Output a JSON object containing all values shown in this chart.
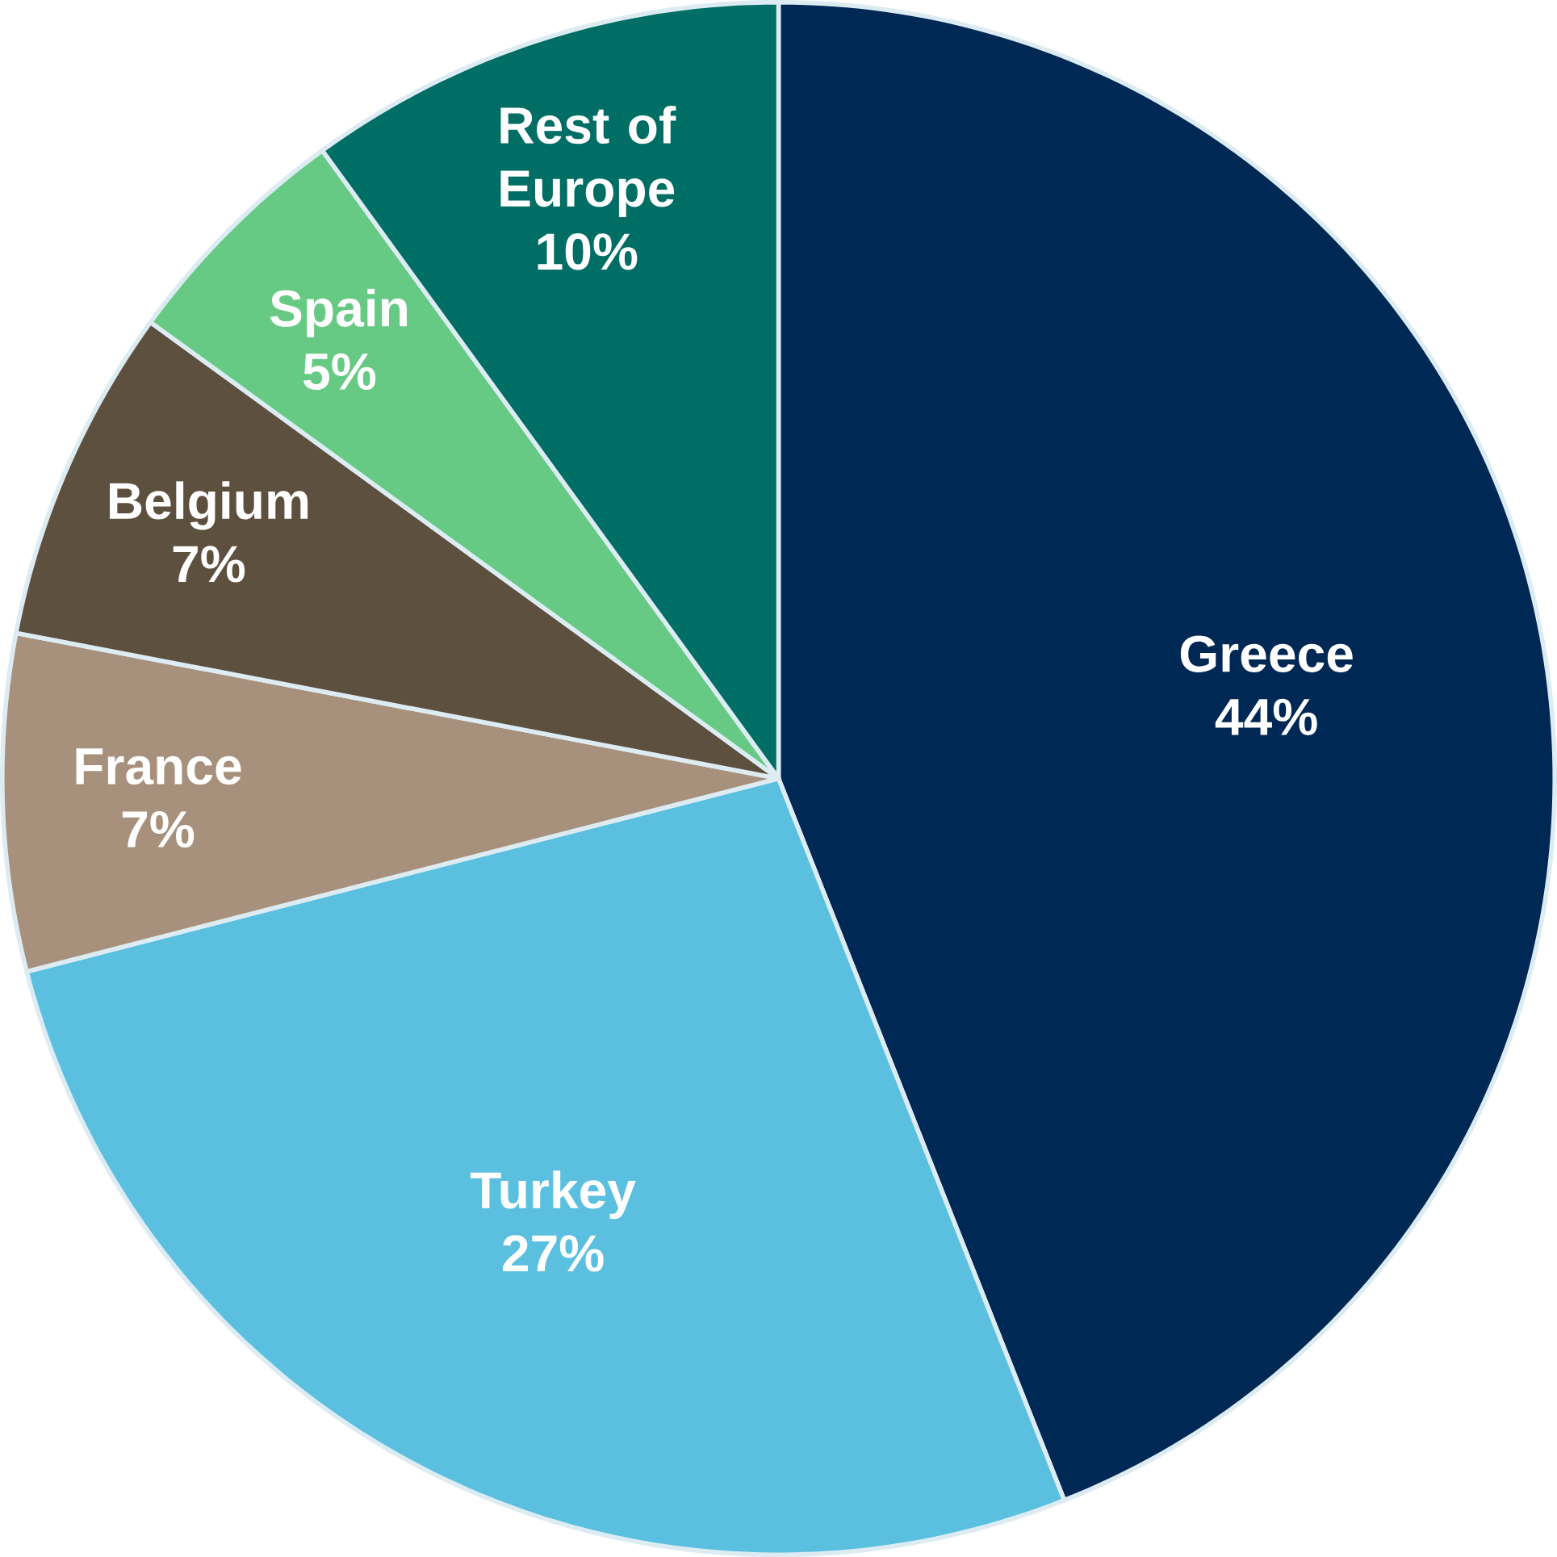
{
  "chart_data": {
    "type": "pie",
    "categories": [
      "Greece",
      "Turkey",
      "France",
      "Belgium",
      "Spain",
      "Rest of Europe"
    ],
    "values": [
      44,
      27,
      7,
      7,
      5,
      10
    ],
    "value_labels": [
      "44%",
      "27%",
      "7%",
      "7%",
      "5%",
      "10%"
    ],
    "colors": [
      "#002855",
      "#5bc0e0",
      "#a8917c",
      "#5e503f",
      "#66c984",
      "#006e65"
    ]
  }
}
